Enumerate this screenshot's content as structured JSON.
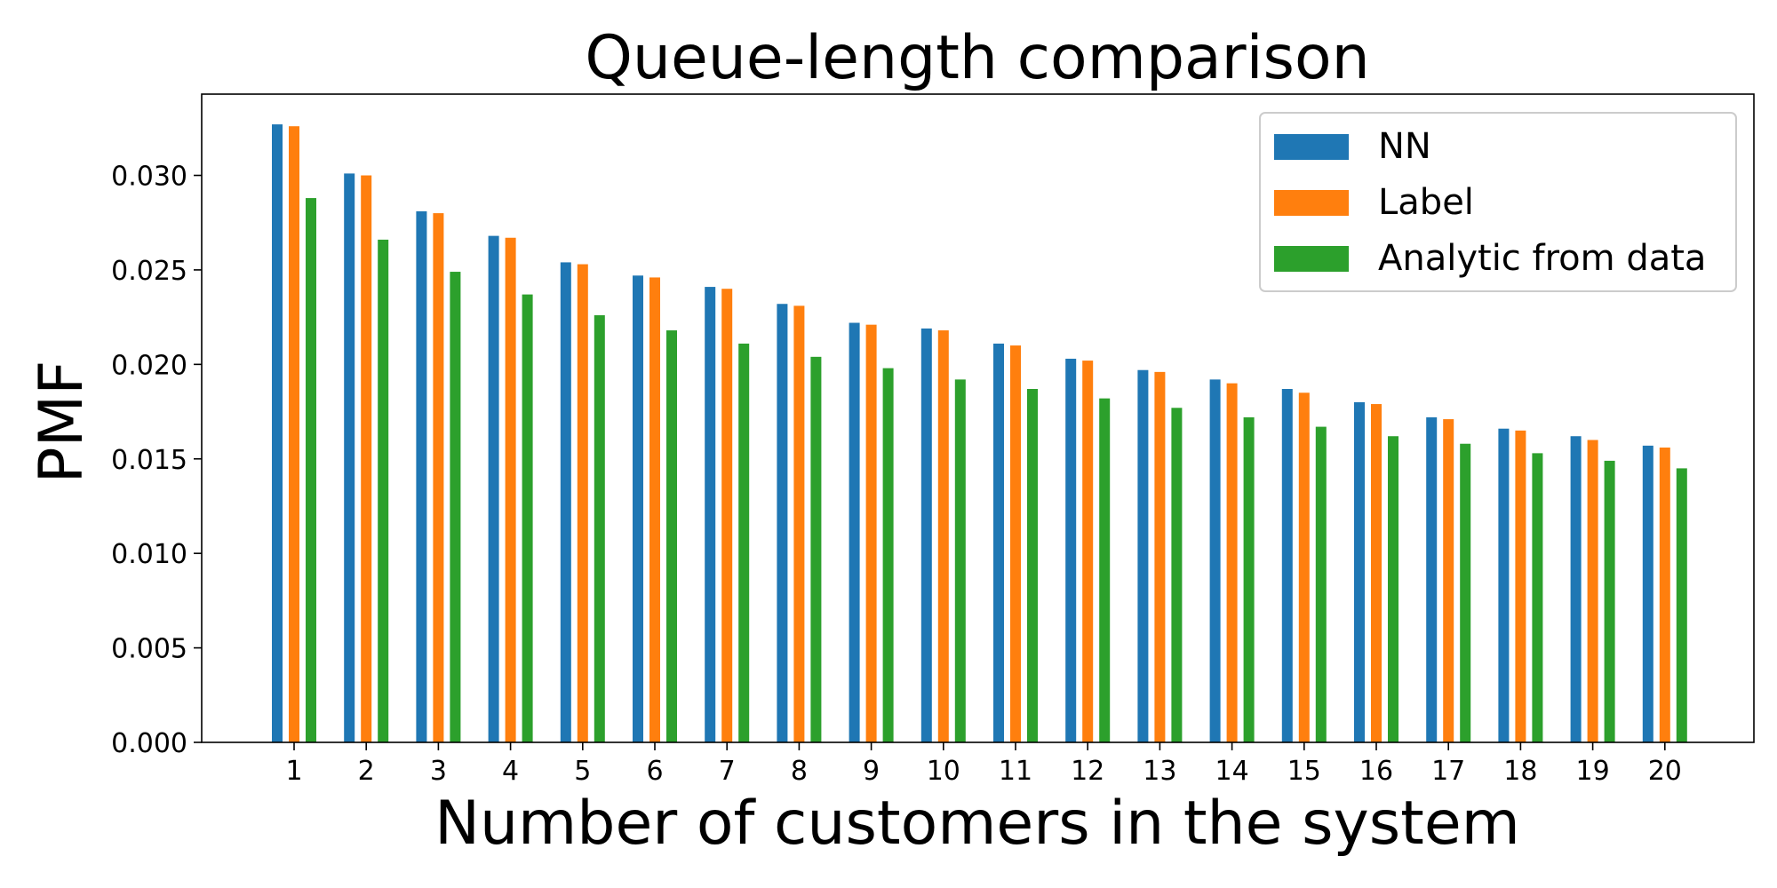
{
  "chart_data": {
    "type": "bar",
    "title": "Queue-length comparison",
    "xlabel": "Number of customers in the system",
    "ylabel": "PMF",
    "categories": [
      "1",
      "2",
      "3",
      "4",
      "5",
      "6",
      "7",
      "8",
      "9",
      "10",
      "11",
      "12",
      "13",
      "14",
      "15",
      "16",
      "17",
      "18",
      "19",
      "20"
    ],
    "series": [
      {
        "name": "NN",
        "color": "#1f77b4",
        "values": [
          0.0327,
          0.0301,
          0.0281,
          0.0268,
          0.0254,
          0.0247,
          0.0241,
          0.0232,
          0.0222,
          0.0219,
          0.0211,
          0.0203,
          0.0197,
          0.0192,
          0.0187,
          0.018,
          0.0172,
          0.0166,
          0.0162,
          0.0157
        ]
      },
      {
        "name": "Label",
        "color": "#ff7f0e",
        "values": [
          0.0326,
          0.03,
          0.028,
          0.0267,
          0.0253,
          0.0246,
          0.024,
          0.0231,
          0.0221,
          0.0218,
          0.021,
          0.0202,
          0.0196,
          0.019,
          0.0185,
          0.0179,
          0.0171,
          0.0165,
          0.016,
          0.0156
        ]
      },
      {
        "name": "Analytic from data",
        "color": "#2ca02c",
        "values": [
          0.0288,
          0.0266,
          0.0249,
          0.0237,
          0.0226,
          0.0218,
          0.0211,
          0.0204,
          0.0198,
          0.0192,
          0.0187,
          0.0182,
          0.0177,
          0.0172,
          0.0167,
          0.0162,
          0.0158,
          0.0153,
          0.0149,
          0.0145
        ]
      }
    ],
    "ylim": [
      0,
      0.0343
    ],
    "yticks": [
      "0.000",
      "0.005",
      "0.010",
      "0.015",
      "0.020",
      "0.025",
      "0.030"
    ],
    "ytick_values": [
      0.0,
      0.005,
      0.01,
      0.015,
      0.02,
      0.025,
      0.03
    ],
    "grid": false,
    "legend_position": "top-right"
  }
}
